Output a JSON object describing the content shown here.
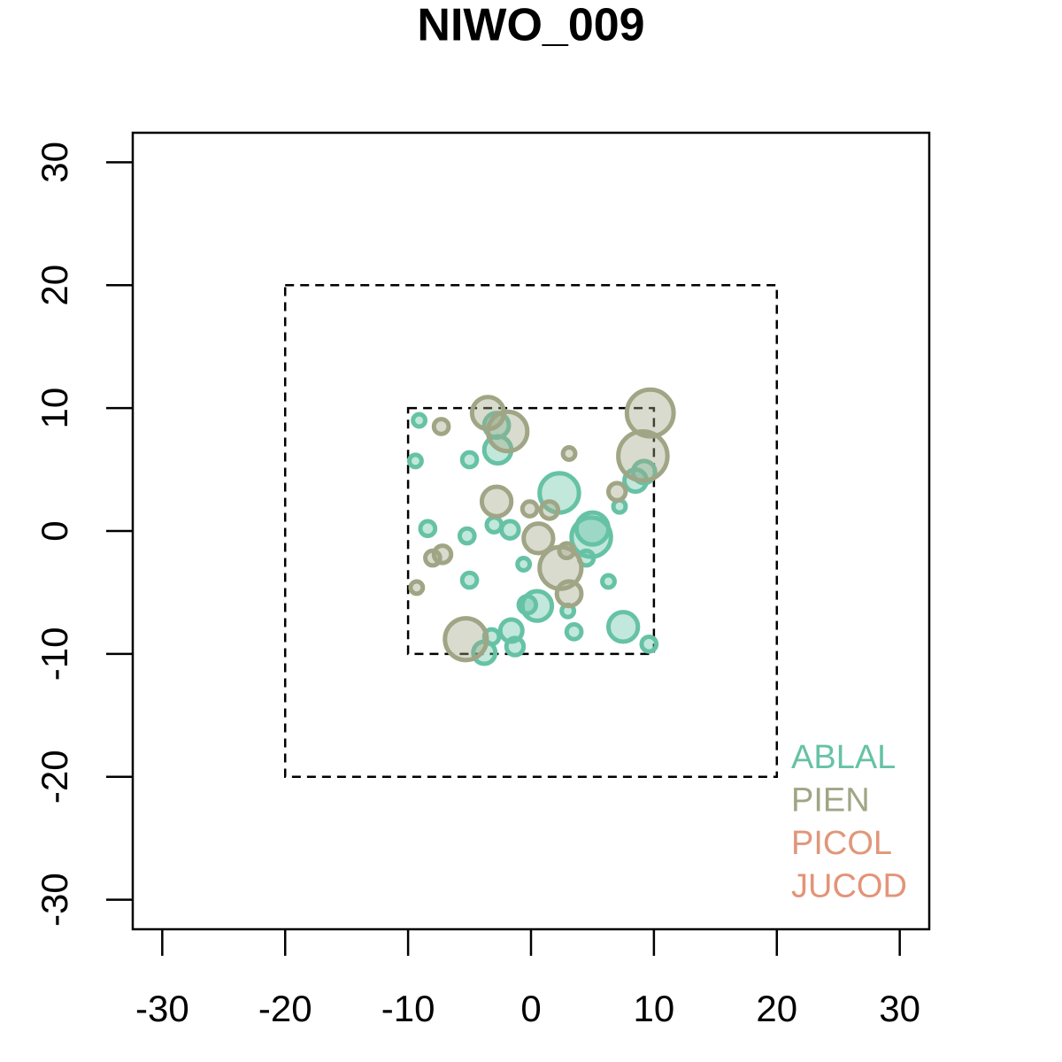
{
  "chart_data": {
    "type": "bubble",
    "title": "NIWO_009",
    "xlim": [
      -32.4,
      32.4
    ],
    "ylim": [
      -32.4,
      32.4
    ],
    "xticks": [
      -30,
      -20,
      -10,
      0,
      10,
      20,
      30
    ],
    "yticks": [
      -30,
      -20,
      -10,
      0,
      10,
      20,
      30
    ],
    "boundaries": [
      20,
      10
    ],
    "legend": "bottom-right",
    "series": [
      {
        "name": "ABLAL",
        "color": "#66c2a5",
        "x": [
          -9.1,
          -9.4,
          -5.0,
          -2.7,
          -2.8,
          2.3,
          5.0,
          4.9,
          8.5,
          9.2,
          7.2,
          -8.4,
          -5.2,
          -3.0,
          -1.7,
          -0.6,
          -5.0,
          4.5,
          6.3,
          0.5,
          -0.3,
          3.0,
          3.5,
          7.5,
          9.6,
          -1.6,
          -1.3,
          -3.2,
          -3.8
        ],
        "y": [
          9.0,
          5.7,
          5.8,
          6.6,
          8.6,
          3.1,
          0.2,
          -0.5,
          4.1,
          4.8,
          2.0,
          0.2,
          -0.4,
          0.5,
          0.1,
          -2.7,
          -4.0,
          -2.2,
          -4.1,
          -6.1,
          -6.0,
          -6.5,
          -8.2,
          -7.8,
          -9.2,
          -8.1,
          -9.4,
          -8.6,
          -9.9
        ],
        "sizes": [
          0.5,
          0.5,
          0.6,
          1.1,
          1.0,
          1.6,
          1.3,
          1.6,
          0.9,
          0.9,
          0.5,
          0.6,
          0.6,
          0.6,
          0.7,
          0.5,
          0.6,
          0.6,
          0.5,
          1.2,
          0.7,
          0.5,
          0.6,
          1.2,
          0.6,
          0.9,
          0.7,
          0.6,
          0.9
        ]
      },
      {
        "name": "PIEN",
        "color": "#a0a585",
        "x": [
          -3.5,
          -1.9,
          -7.3,
          3.1,
          9.7,
          9.1,
          7.0,
          -2.8,
          -0.1,
          1.5,
          0.6,
          2.9,
          2.4,
          3.1,
          -7.2,
          -8.0,
          -9.3,
          -5.3
        ],
        "y": [
          9.6,
          8.1,
          8.5,
          6.3,
          9.6,
          6.1,
          3.2,
          2.4,
          1.8,
          1.7,
          -0.6,
          -1.6,
          -3.0,
          -5.1,
          -1.9,
          -2.2,
          -4.6,
          -8.8
        ],
        "sizes": [
          1.3,
          1.6,
          0.6,
          0.5,
          1.9,
          2.0,
          0.7,
          1.2,
          0.6,
          0.7,
          1.2,
          0.6,
          1.7,
          1.0,
          0.7,
          0.6,
          0.5,
          1.7
        ]
      },
      {
        "name": "PICOL",
        "color": "#e0977a",
        "x": [],
        "y": [],
        "sizes": []
      },
      {
        "name": "JUCOD",
        "color": "#e39478",
        "x": [],
        "y": [],
        "sizes": []
      }
    ]
  }
}
